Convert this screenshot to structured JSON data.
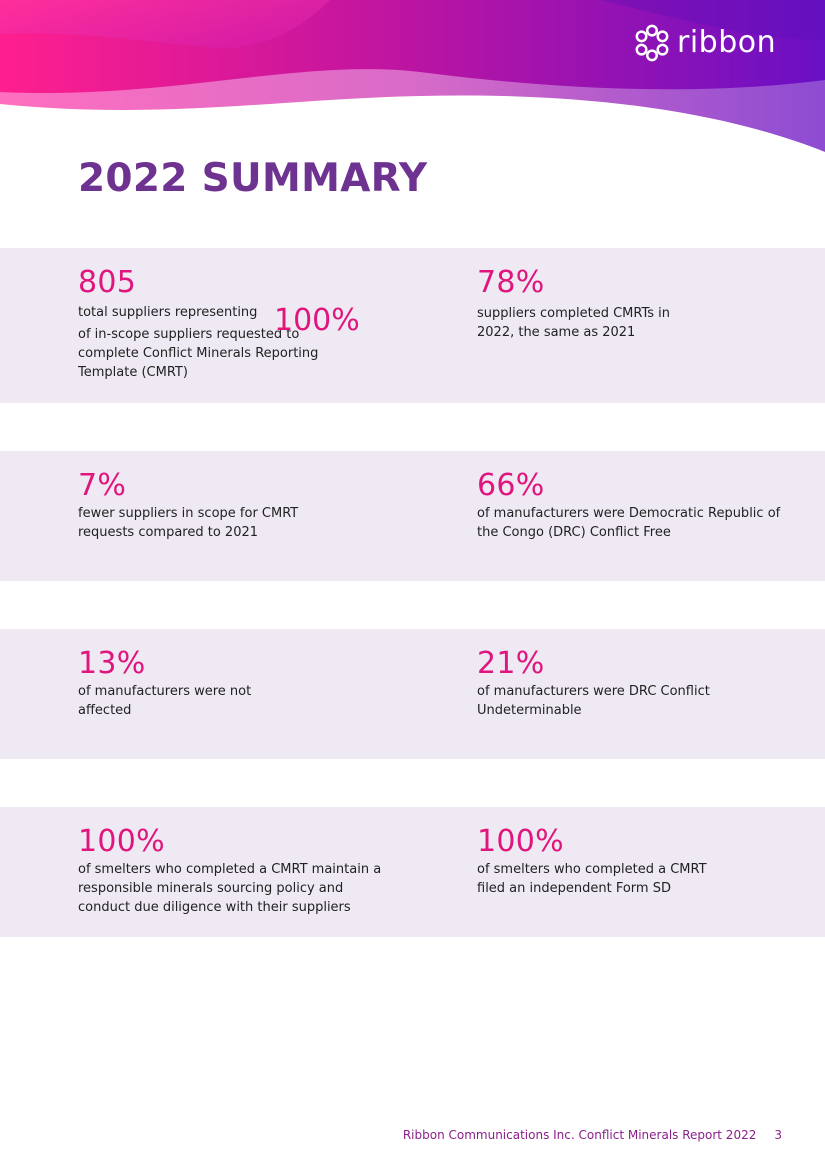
{
  "brand": {
    "logo_text": "ribbon",
    "icon": "ribbon-logo-icon"
  },
  "page": {
    "title": "2022 SUMMARY"
  },
  "stats": [
    {
      "value": "805",
      "desc_lead": "total suppliers representing",
      "inline_value": "100%",
      "desc": "of in-scope suppliers requested to complete Conflict Minerals Reporting Template (CMRT)"
    },
    {
      "value": "78%",
      "desc": "suppliers completed CMRTs in 2022, the same as 2021"
    },
    {
      "value": "7%",
      "desc": "fewer suppliers in scope for CMRT requests compared to 2021"
    },
    {
      "value": "66%",
      "desc": "of manufacturers were Democratic Republic of the Congo (DRC) Conflict Free"
    },
    {
      "value": "13%",
      "desc": "of manufacturers were not affected"
    },
    {
      "value": "21%",
      "desc": "of manufacturers were DRC Conflict Undeterminable"
    },
    {
      "value": "100%",
      "desc": "of smelters who completed a CMRT maintain a responsible minerals sourcing policy and conduct due diligence with their suppliers"
    },
    {
      "value": "100%",
      "desc": "of smelters who completed a CMRT filed an independent Form SD"
    }
  ],
  "footer": {
    "text": "Ribbon Communications Inc. Conflict Minerals Report 2022",
    "page_number": "3"
  },
  "colors": {
    "title": "#6e3391",
    "stat": "#e0167e",
    "band": "#efe9f3",
    "footer": "#8a1f8a"
  }
}
